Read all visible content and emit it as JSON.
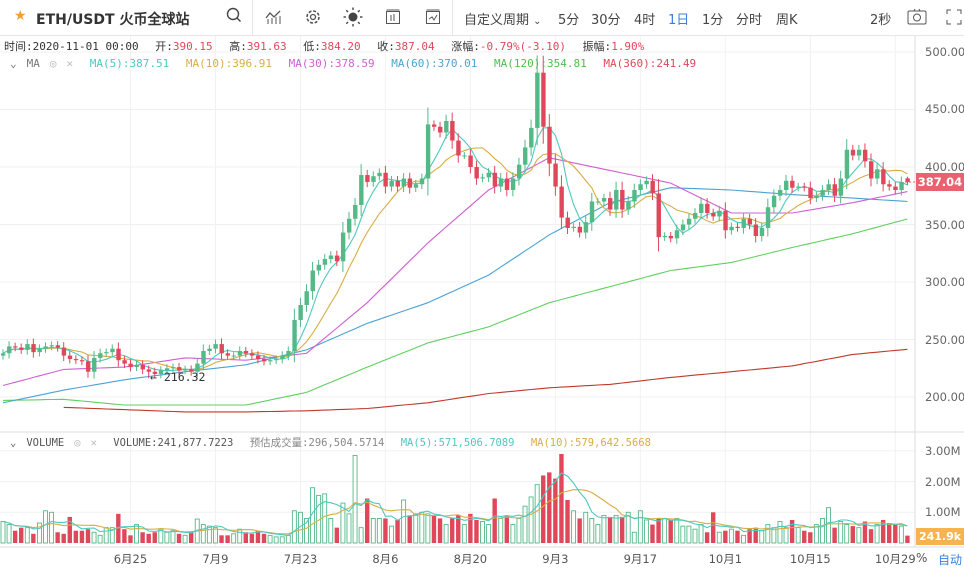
{
  "toolbar": {
    "symbol": "ETH/USDT",
    "exchange": "火币全球站",
    "custom_period": "自定义周期",
    "periods": [
      "5分",
      "30分",
      "4时",
      "1日",
      "1分",
      "分时",
      "周K"
    ],
    "active_period": "1日",
    "refresh": "2秒",
    "icons": [
      "star-icon",
      "search-icon",
      "indicator-icon",
      "gear-icon",
      "theme-sun-icon",
      "layout-icon",
      "compare-icon",
      "camera-icon",
      "fullscreen-icon"
    ]
  },
  "info": {
    "time_label": "时间:",
    "time": "2020-11-01 00:00",
    "open_label": "开:",
    "open": "390.15",
    "high_label": "高:",
    "high": "391.63",
    "low_label": "低:",
    "low": "384.20",
    "close_label": "收:",
    "close": "387.04",
    "change_label": "涨幅:",
    "change": "-0.79%(-3.10)",
    "amp_label": "振幅:",
    "amp": "1.90%"
  },
  "ma_legend": {
    "name": "MA",
    "items": [
      "MA(5):387.51",
      "MA(10):396.91",
      "MA(30):378.59",
      "MA(60):370.01",
      "MA(120):354.81",
      "MA(360):241.49"
    ]
  },
  "volume_legend": {
    "name": "VOLUME",
    "volume": "VOLUME:241,877.7223",
    "estimate": "预估成交量:296,504.5714",
    "ma5": "MA(5):571,506.7089",
    "ma10": "MA(10):579,642.5668"
  },
  "axis_bottom": {
    "percent": "%",
    "auto": "自动"
  },
  "colors": {
    "up": "#53b987",
    "down": "#e0475a",
    "ma5": "#4ec8c0",
    "ma10": "#d9ad45",
    "ma30": "#d05fd3",
    "ma60": "#4ba3d3",
    "ma120": "#5fcf5f",
    "ma360": "#c0392b",
    "active": "#3d7fe0"
  },
  "chart_data": {
    "type": "candlestick",
    "price_axis": {
      "ticks": [
        "500.00",
        "450.00",
        "400.00",
        "350.00",
        "300.00",
        "250.00",
        "200.00"
      ],
      "range": [
        180,
        510
      ]
    },
    "volume_axis": {
      "ticks": [
        "3.00M",
        "2.00M",
        "1.00M"
      ],
      "range": [
        0,
        3.1
      ]
    },
    "x_ticks": [
      "6月25",
      "7月9",
      "7月23",
      "8月6",
      "8月20",
      "9月3",
      "9月17",
      "10月1",
      "10月15",
      "10月29"
    ],
    "last_price": "387.04",
    "last_volume": "241.9k",
    "low_marker": {
      "index": 24,
      "label": "← 216.32"
    },
    "last_ohlc": {
      "open": 390.15,
      "high": 391.63,
      "low": 384.2,
      "close": 387.04
    },
    "closes": [
      238,
      244,
      243,
      241,
      246,
      239,
      242,
      244,
      245,
      243,
      236,
      233,
      232,
      231,
      222,
      234,
      238,
      239,
      242,
      232,
      229,
      226,
      228,
      224,
      222,
      220,
      223,
      225,
      226,
      223,
      224,
      222,
      229,
      240,
      242,
      246,
      238,
      236,
      236,
      240,
      238,
      236,
      233,
      231,
      232,
      233,
      236,
      240,
      267,
      280,
      292,
      310,
      315,
      320,
      323,
      318,
      343,
      355,
      367,
      393,
      387,
      392,
      395,
      383,
      388,
      383,
      390,
      382,
      385,
      390,
      437,
      435,
      430,
      440,
      423,
      410,
      410,
      400,
      390,
      391,
      395,
      383,
      390,
      380,
      390,
      402,
      417,
      434,
      482,
      435,
      403,
      383,
      356,
      347,
      348,
      343,
      352,
      370,
      370,
      373,
      363,
      380,
      363,
      370,
      380,
      385,
      388,
      377,
      339,
      340,
      338,
      345,
      350,
      355,
      360,
      368,
      360,
      357,
      362,
      345,
      348,
      347,
      355,
      350,
      340,
      347,
      365,
      375,
      380,
      388,
      382,
      383,
      382,
      373,
      375,
      380,
      385,
      375,
      390,
      415,
      410,
      415,
      405,
      390,
      398,
      385,
      383,
      380,
      387,
      387.04
    ],
    "volumes_millions": [
      0.7,
      0.6,
      0.4,
      0.5,
      0.5,
      0.3,
      0.65,
      1.05,
      1.0,
      0.35,
      0.3,
      0.85,
      0.4,
      0.4,
      0.45,
      0.35,
      0.25,
      0.5,
      0.5,
      0.95,
      0.45,
      0.25,
      0.6,
      0.35,
      0.3,
      0.35,
      0.45,
      0.35,
      0.4,
      0.3,
      0.25,
      0.35,
      0.78,
      0.6,
      0.55,
      0.5,
      0.25,
      0.25,
      0.3,
      0.45,
      0.35,
      0.3,
      0.4,
      0.3,
      0.25,
      0.2,
      0.2,
      0.25,
      1.05,
      1.0,
      0.8,
      1.8,
      1.55,
      1.6,
      0.8,
      0.5,
      1.3,
      0.95,
      2.85,
      0.5,
      1.45,
      0.8,
      0.8,
      0.8,
      0.55,
      0.75,
      1.4,
      0.9,
      0.95,
      1.0,
      0.95,
      0.9,
      0.8,
      0.6,
      0.8,
      0.9,
      0.6,
      0.95,
      0.75,
      0.7,
      0.6,
      1.45,
      0.8,
      0.9,
      0.6,
      0.8,
      1.2,
      1.5,
      1.9,
      2.2,
      2.3,
      2.1,
      2.9,
      1.4,
      1.05,
      0.8,
      1.0,
      0.8,
      0.6,
      0.9,
      0.85,
      0.9,
      0.85,
      1.0,
      0.35,
      1.05,
      0.75,
      0.6,
      0.8,
      0.8,
      0.75,
      0.8,
      0.55,
      0.55,
      0.45,
      0.6,
      0.35,
      1.0,
      0.35,
      0.4,
      0.45,
      0.4,
      0.25,
      0.45,
      0.5,
      0.4,
      0.6,
      0.5,
      0.7,
      0.5,
      0.75,
      0.5,
      0.4,
      0.35,
      0.6,
      0.8,
      1.15,
      0.5,
      0.7,
      0.6,
      0.55,
      0.5,
      0.7,
      0.45,
      0.6,
      0.75,
      0.65,
      0.6,
      0.55,
      0.24
    ],
    "ma_samples_every_10": {
      "ma30": [
        210,
        224,
        226,
        234,
        232,
        238,
        282,
        334,
        380,
        408,
        397,
        386,
        360,
        360,
        369,
        378.59
      ],
      "ma60": [
        195,
        206,
        215,
        222,
        228,
        241,
        264,
        282,
        306,
        341,
        369,
        382,
        380,
        376,
        373,
        370.01
      ],
      "ma120": [
        197,
        198,
        193,
        193,
        193,
        204,
        226,
        247,
        261,
        282,
        296,
        310,
        317,
        330,
        342,
        354.81
      ],
      "ma360": [
        null,
        191,
        189,
        187,
        187,
        188,
        190,
        195,
        203,
        208,
        211,
        217,
        222,
        227,
        237,
        241.49
      ]
    }
  }
}
